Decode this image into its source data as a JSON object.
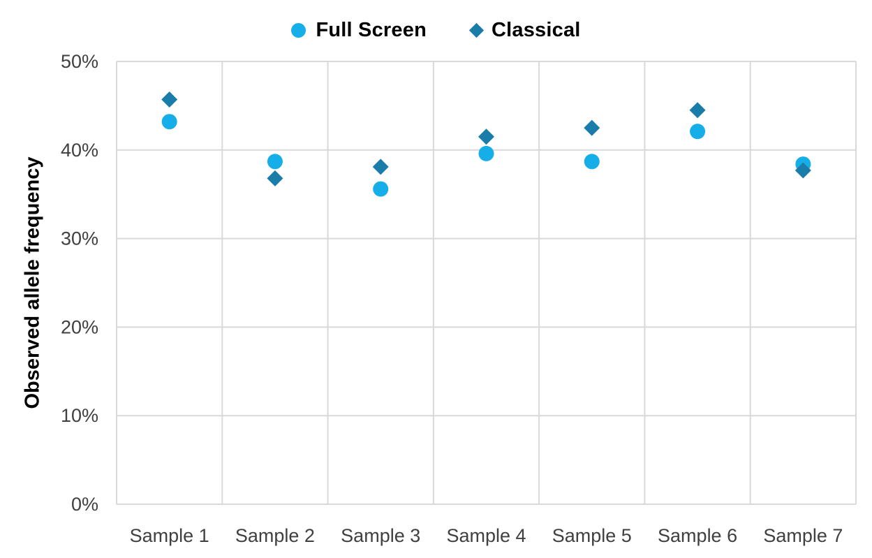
{
  "chart_data": {
    "type": "scatter",
    "title": "",
    "categories": [
      "Sample 1",
      "Sample 2",
      "Sample 3",
      "Sample 4",
      "Sample 5",
      "Sample 6",
      "Sample 7"
    ],
    "series": [
      {
        "name": "Full Screen",
        "marker": "circle",
        "color": "#15AEE8",
        "values": [
          43.2,
          38.7,
          35.6,
          39.6,
          38.7,
          42.1,
          38.4
        ]
      },
      {
        "name": "Classical",
        "marker": "diamond",
        "color": "#1A7CA8",
        "values": [
          45.7,
          36.8,
          38.1,
          41.5,
          42.5,
          44.5,
          37.7
        ]
      }
    ],
    "xlabel": "",
    "ylabel": "Observed allele frequency",
    "ylim": [
      0,
      50
    ],
    "ytick_step": 10,
    "ytick_labels": [
      "0%",
      "10%",
      "20%",
      "30%",
      "40%",
      "50%"
    ],
    "grid": true,
    "legend_position": "top",
    "colors": {
      "gridline": "#D9D9D9",
      "tick_label": "#404040",
      "legend_text": "#000000",
      "axis_title": "#000000",
      "background": "#FFFFFF"
    }
  }
}
